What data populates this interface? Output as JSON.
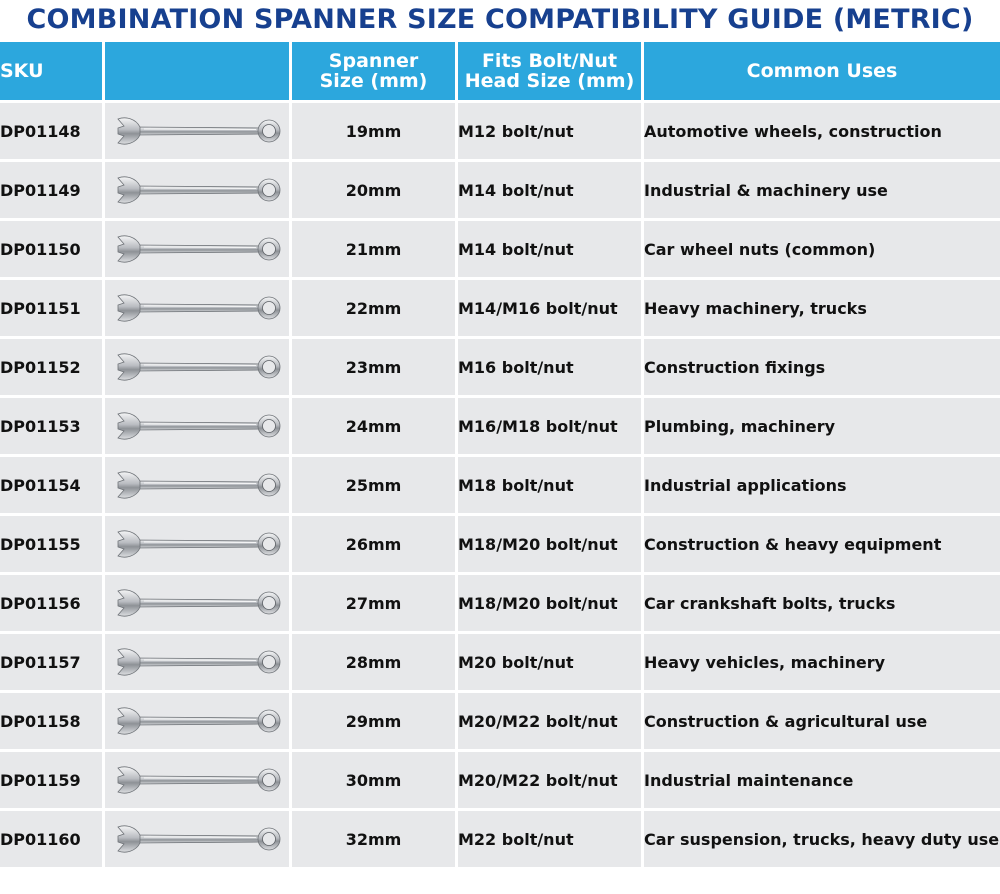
{
  "title": "COMBINATION SPANNER SIZE COMPATIBILITY GUIDE (METRIC)",
  "colors": {
    "title": "#17408f",
    "header_bg": "#2ca7dd",
    "row_bg": "#e7e8ea",
    "text": "#111111"
  },
  "headers": {
    "sku": "SKU",
    "image": "",
    "size_line1": "Spanner",
    "size_line2": "Size (mm)",
    "fits_line1": "Fits Bolt/Nut",
    "fits_line2": "Head Size (mm)",
    "uses": "Common Uses"
  },
  "image_icon": "combination-spanner-icon",
  "rows": [
    {
      "sku": "DP01148",
      "size": "19mm",
      "fits": "M12 bolt/nut",
      "uses": "Automotive wheels, construction"
    },
    {
      "sku": "DP01149",
      "size": "20mm",
      "fits": "M14 bolt/nut",
      "uses": "Industrial & machinery use"
    },
    {
      "sku": "DP01150",
      "size": "21mm",
      "fits": "M14 bolt/nut",
      "uses": "Car wheel nuts (common)"
    },
    {
      "sku": "DP01151",
      "size": "22mm",
      "fits": "M14/M16 bolt/nut",
      "uses": "Heavy machinery, trucks"
    },
    {
      "sku": "DP01152",
      "size": "23mm",
      "fits": "M16 bolt/nut",
      "uses": "Construction fixings"
    },
    {
      "sku": "DP01153",
      "size": "24mm",
      "fits": "M16/M18 bolt/nut",
      "uses": "Plumbing, machinery"
    },
    {
      "sku": "DP01154",
      "size": "25mm",
      "fits": "M18 bolt/nut",
      "uses": "Industrial applications"
    },
    {
      "sku": "DP01155",
      "size": "26mm",
      "fits": "M18/M20 bolt/nut",
      "uses": "Construction & heavy equipment"
    },
    {
      "sku": "DP01156",
      "size": "27mm",
      "fits": "M18/M20 bolt/nut",
      "uses": "Car crankshaft bolts, trucks"
    },
    {
      "sku": "DP01157",
      "size": "28mm",
      "fits": "M20 bolt/nut",
      "uses": "Heavy vehicles, machinery"
    },
    {
      "sku": "DP01158",
      "size": "29mm",
      "fits": "M20/M22 bolt/nut",
      "uses": "Construction & agricultural use"
    },
    {
      "sku": "DP01159",
      "size": "30mm",
      "fits": "M20/M22 bolt/nut",
      "uses": "Industrial maintenance"
    },
    {
      "sku": "DP01160",
      "size": "32mm",
      "fits": "M22 bolt/nut",
      "uses": "Car suspension, trucks, heavy duty use"
    }
  ]
}
